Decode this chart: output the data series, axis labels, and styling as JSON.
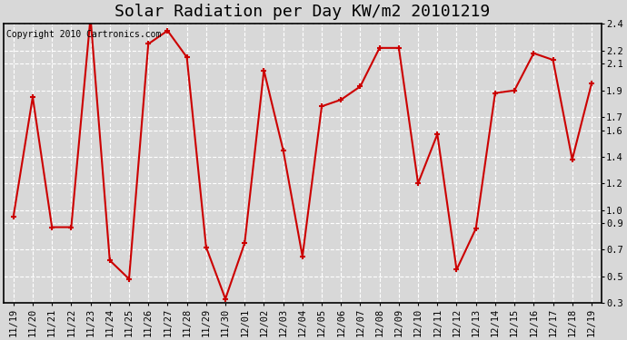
{
  "title": "Solar Radiation per Day KW/m2 20101219",
  "copyright_text": "Copyright 2010 Cartronics.com",
  "dates": [
    "11/19",
    "11/20",
    "11/21",
    "11/22",
    "11/23",
    "11/24",
    "11/25",
    "11/26",
    "11/27",
    "11/28",
    "11/29",
    "11/30",
    "12/01",
    "12/02",
    "12/03",
    "12/04",
    "12/05",
    "12/06",
    "12/07",
    "12/08",
    "12/09",
    "12/10",
    "12/11",
    "12/12",
    "12/13",
    "12/14",
    "12/15",
    "12/16",
    "12/17",
    "12/18",
    "12/19"
  ],
  "values": [
    0.95,
    1.85,
    0.87,
    0.87,
    2.45,
    0.62,
    0.48,
    2.25,
    2.35,
    2.15,
    0.72,
    0.33,
    0.75,
    2.05,
    1.45,
    0.65,
    1.78,
    1.83,
    1.93,
    2.22,
    2.22,
    1.2,
    1.57,
    0.55,
    0.86,
    1.88,
    1.9,
    2.18,
    2.13,
    1.38,
    1.95
  ],
  "line_color": "#cc0000",
  "marker": "+",
  "markersize": 5,
  "linewidth": 1.5,
  "markeredgewidth": 1.5,
  "ylim": [
    0.3,
    2.4
  ],
  "yticks": [
    0.3,
    0.5,
    0.7,
    0.9,
    1.0,
    1.2,
    1.4,
    1.6,
    1.7,
    1.9,
    2.1,
    2.2,
    2.4
  ],
  "ytick_labels": [
    "0.3",
    "0.5",
    "0.7",
    "0.9",
    "1.0",
    "1.2",
    "1.4",
    "1.6",
    "1.7",
    "1.9",
    "2.1",
    "2.2",
    "2.4"
  ],
  "bg_color": "#d8d8d8",
  "grid_color": "#ffffff",
  "title_fontsize": 13,
  "tick_fontsize": 7.5,
  "copyright_fontsize": 7
}
